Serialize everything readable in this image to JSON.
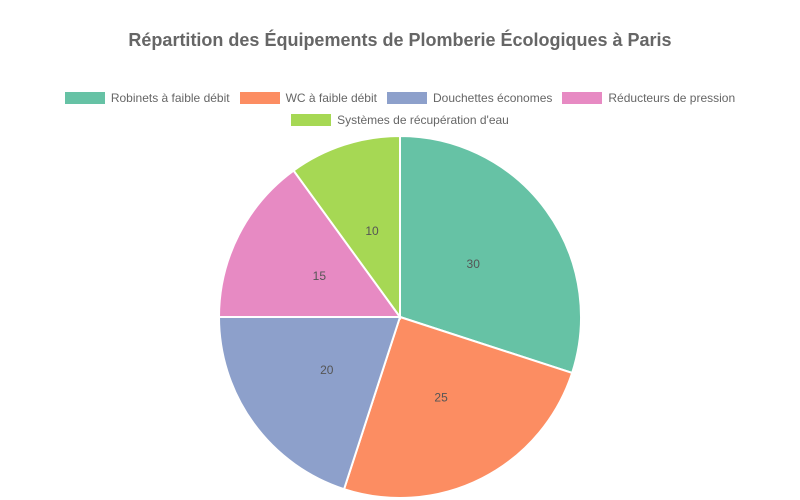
{
  "chart_data": {
    "type": "pie",
    "title": "Répartition des Équipements de Plomberie Écologiques à Paris",
    "categories": [
      "Robinets à faible débit",
      "WC à faible débit",
      "Douchettes économes",
      "Réducteurs de pression",
      "Systèmes de récupération d'eau"
    ],
    "values": [
      30,
      25,
      20,
      15,
      10
    ],
    "colors": [
      "#66c2a5",
      "#fc8d62",
      "#8da0cb",
      "#e78ac3",
      "#a6d854"
    ],
    "legend_position": "top",
    "data_labels": [
      "30",
      "25",
      "20",
      "15",
      "10"
    ]
  },
  "legend": {
    "row1": [
      "Robinets à faible débit",
      "WC à faible débit",
      "Douchettes économes",
      "Réducteurs de pression"
    ],
    "row2": [
      "Systèmes de récupération d'eau"
    ]
  }
}
